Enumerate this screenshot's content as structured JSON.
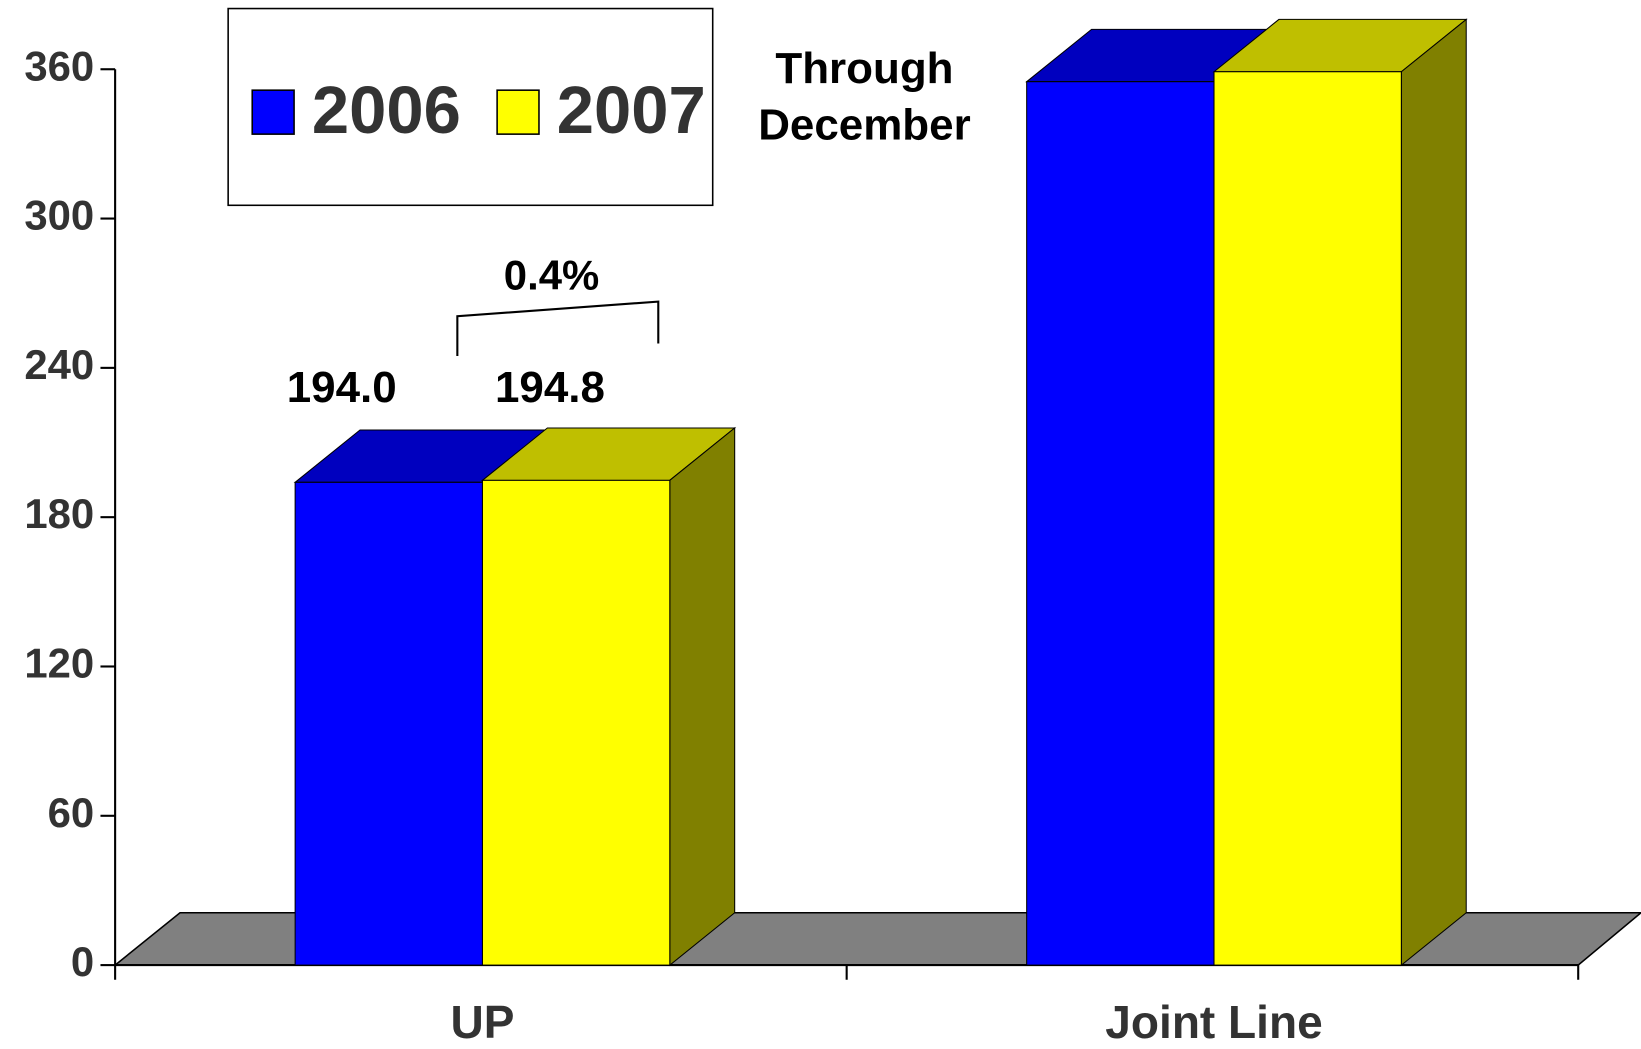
{
  "chart_data": {
    "type": "bar3d",
    "annotations": [
      "Through",
      "December",
      "0.4%"
    ],
    "categories": [
      "UP",
      "Joint Line"
    ],
    "series": [
      {
        "name": "2006",
        "color": "#0000ff",
        "values": [
          194.0,
          355
        ],
        "value_labels": [
          "194.0",
          null
        ]
      },
      {
        "name": "2007",
        "color": "#ffff00",
        "values": [
          194.8,
          359
        ],
        "value_labels": [
          "194.8",
          null
        ]
      }
    ],
    "ylim": [
      0,
      360
    ],
    "yticks": [
      0,
      60,
      120,
      180,
      240,
      300,
      360
    ],
    "legend": "top-left"
  }
}
